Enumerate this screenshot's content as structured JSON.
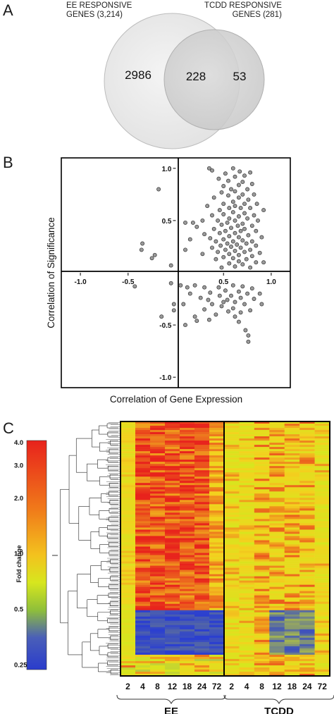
{
  "panels": {
    "a": "A",
    "b": "B",
    "c": "C"
  },
  "venn": {
    "left_label_line1": "EE RESPONSIVE",
    "left_label_line2": "GENES (3,214)",
    "right_label_line1": "TCDD RESPONSIVE",
    "right_label_line2": "GENES (281)",
    "left_only": "2986",
    "overlap": "228",
    "right_only": "53"
  },
  "chart_data": [
    {
      "type": "scatter",
      "xlabel": "Correlation of Gene Expression",
      "ylabel": "Correlation of Significance",
      "xlim": [
        -1.2,
        1.2
      ],
      "ylim": [
        -1.1,
        1.1
      ],
      "x_ticks": [
        "-1.0",
        "-0.5",
        "0.5",
        "1.0"
      ],
      "x_tick_values": [
        -1.0,
        -0.5,
        0.5,
        1.0
      ],
      "y_ticks": [
        "1.0",
        "0.5",
        "-0.5",
        "-1.0"
      ],
      "y_tick_values": [
        1.0,
        0.5,
        -0.5,
        -1.0
      ],
      "point_color": "#9a9a9a",
      "points": [
        [
          0.35,
          1.0
        ],
        [
          0.38,
          0.98
        ],
        [
          0.6,
          1.0
        ],
        [
          0.67,
          0.97
        ],
        [
          0.52,
          0.95
        ],
        [
          0.72,
          0.93
        ],
        [
          0.78,
          0.96
        ],
        [
          0.62,
          0.92
        ],
        [
          0.45,
          0.9
        ],
        [
          0.55,
          0.88
        ],
        [
          0.7,
          0.87
        ],
        [
          0.8,
          0.85
        ],
        [
          0.66,
          0.84
        ],
        [
          0.5,
          0.83
        ],
        [
          0.58,
          0.8
        ],
        [
          0.75,
          0.8
        ],
        [
          0.62,
          0.78
        ],
        [
          0.48,
          0.77
        ],
        [
          0.7,
          0.75
        ],
        [
          0.82,
          0.75
        ],
        [
          -0.18,
          0.8
        ],
        [
          0.55,
          0.74
        ],
        [
          0.66,
          0.72
        ],
        [
          0.4,
          0.72
        ],
        [
          0.76,
          0.7
        ],
        [
          0.6,
          0.68
        ],
        [
          0.5,
          0.66
        ],
        [
          0.72,
          0.66
        ],
        [
          0.85,
          0.66
        ],
        [
          0.62,
          0.64
        ],
        [
          0.33,
          0.64
        ],
        [
          0.56,
          0.62
        ],
        [
          0.68,
          0.62
        ],
        [
          0.78,
          0.62
        ],
        [
          0.46,
          0.6
        ],
        [
          0.92,
          0.6
        ],
        [
          0.6,
          0.58
        ],
        [
          0.72,
          0.57
        ],
        [
          0.5,
          0.56
        ],
        [
          0.38,
          0.55
        ],
        [
          0.82,
          0.55
        ],
        [
          0.66,
          0.54
        ],
        [
          0.56,
          0.52
        ],
        [
          0.75,
          0.52
        ],
        [
          0.44,
          0.5
        ],
        [
          0.62,
          0.5
        ],
        [
          0.86,
          0.5
        ],
        [
          0.28,
          0.5
        ],
        [
          0.18,
          0.48
        ],
        [
          0.54,
          0.48
        ],
        [
          0.7,
          0.47
        ],
        [
          0.1,
          0.48
        ],
        [
          0.48,
          0.46
        ],
        [
          0.65,
          0.45
        ],
        [
          0.8,
          0.45
        ],
        [
          0.22,
          0.44
        ],
        [
          0.58,
          0.43
        ],
        [
          0.72,
          0.42
        ],
        [
          0.4,
          0.42
        ],
        [
          0.52,
          0.4
        ],
        [
          0.68,
          0.4
        ],
        [
          0.84,
          0.4
        ],
        [
          0.62,
          0.38
        ],
        [
          0.46,
          0.38
        ],
        [
          0.3,
          0.37
        ],
        [
          0.76,
          0.36
        ],
        [
          0.56,
          0.35
        ],
        [
          0.66,
          0.34
        ],
        [
          0.9,
          0.34
        ],
        [
          0.36,
          0.33
        ],
        [
          0.5,
          0.32
        ],
        [
          0.7,
          0.31
        ],
        [
          0.6,
          0.3
        ],
        [
          0.8,
          0.3
        ],
        [
          0.42,
          0.3
        ],
        [
          0.15,
          0.32
        ],
        [
          0.54,
          0.28
        ],
        [
          0.74,
          0.28
        ],
        [
          0.64,
          0.27
        ],
        [
          0.47,
          0.26
        ],
        [
          0.84,
          0.26
        ],
        [
          0.58,
          0.25
        ],
        [
          0.68,
          0.24
        ],
        [
          0.38,
          0.24
        ],
        [
          0.78,
          0.22
        ],
        [
          0.52,
          0.22
        ],
        [
          0.62,
          0.21
        ],
        [
          0.44,
          0.2
        ],
        [
          0.72,
          0.2
        ],
        [
          0.88,
          0.19
        ],
        [
          0.56,
          0.18
        ],
        [
          0.66,
          0.17
        ],
        [
          0.28,
          0.18
        ],
        [
          0.8,
          0.16
        ],
        [
          0.5,
          0.15
        ],
        [
          0.6,
          0.14
        ],
        [
          0.74,
          0.13
        ],
        [
          0.42,
          0.13
        ],
        [
          0.66,
          0.11
        ],
        [
          0.84,
          0.1
        ],
        [
          0.56,
          0.09
        ],
        [
          0.7,
          0.08
        ],
        [
          0.92,
          0.1
        ],
        [
          0.62,
          0.06
        ],
        [
          0.78,
          0.05
        ],
        [
          0.48,
          0.05
        ],
        [
          0.1,
          0.22
        ],
        [
          -0.35,
          0.28
        ],
        [
          -0.36,
          0.22
        ],
        [
          -0.25,
          0.14
        ],
        [
          -0.22,
          0.17
        ],
        [
          -0.05,
          0.07
        ],
        [
          -0.43,
          -0.13
        ],
        [
          -0.05,
          -0.1
        ],
        [
          0.05,
          -0.12
        ],
        [
          0.12,
          -0.14
        ],
        [
          0.2,
          -0.12
        ],
        [
          0.3,
          -0.14
        ],
        [
          0.45,
          -0.14
        ],
        [
          0.6,
          -0.12
        ],
        [
          0.7,
          -0.13
        ],
        [
          0.8,
          -0.15
        ],
        [
          0.52,
          -0.17
        ],
        [
          0.66,
          -0.18
        ],
        [
          0.36,
          -0.19
        ],
        [
          0.75,
          -0.2
        ],
        [
          0.58,
          -0.22
        ],
        [
          0.46,
          -0.22
        ],
        [
          0.68,
          -0.24
        ],
        [
          0.26,
          -0.24
        ],
        [
          0.82,
          -0.25
        ],
        [
          0.54,
          -0.26
        ],
        [
          0.62,
          -0.28
        ],
        [
          0.38,
          -0.3
        ],
        [
          0.72,
          -0.3
        ],
        [
          0.48,
          -0.32
        ],
        [
          0.6,
          -0.34
        ],
        [
          0.3,
          -0.35
        ],
        [
          0.78,
          -0.36
        ],
        [
          0.55,
          -0.37
        ],
        [
          0.68,
          -0.38
        ],
        [
          -0.02,
          -0.36
        ],
        [
          0.42,
          -0.4
        ],
        [
          0.2,
          -0.42
        ],
        [
          -0.15,
          -0.42
        ],
        [
          0.62,
          -0.42
        ],
        [
          0.35,
          -0.45
        ],
        [
          0.22,
          -0.46
        ],
        [
          0.66,
          -0.47
        ],
        [
          -0.02,
          -0.3
        ],
        [
          0.73,
          -0.55
        ],
        [
          0.76,
          -0.6
        ],
        [
          0.76,
          -0.66
        ],
        [
          0.1,
          -0.5
        ],
        [
          0.5,
          -0.28
        ],
        [
          0.34,
          -0.26
        ],
        [
          0.08,
          -0.3
        ],
        [
          0.15,
          -0.2
        ],
        [
          0.88,
          -0.2
        ],
        [
          0.9,
          -0.3
        ]
      ]
    },
    {
      "type": "heatmap",
      "colorbar_label": "Fold change",
      "colorbar_ticks": [
        "4.0",
        "3.0",
        "2.0",
        "1.0",
        "0.5",
        "0.25"
      ],
      "colorbar_tick_values": [
        4.0,
        3.0,
        2.0,
        1.0,
        0.5,
        0.25
      ],
      "groups": [
        {
          "name": "EE",
          "columns": [
            "2",
            "4",
            "8",
            "12",
            "18",
            "24",
            "72"
          ]
        },
        {
          "name": "TCDD",
          "columns": [
            "2",
            "4",
            "8",
            "12",
            "18",
            "24",
            "72"
          ]
        }
      ],
      "colors": {
        "high": "#e8231c",
        "mid": "#f3d21e",
        "neutral": "#d6e61e",
        "low": "#2b3fd0"
      }
    }
  ]
}
